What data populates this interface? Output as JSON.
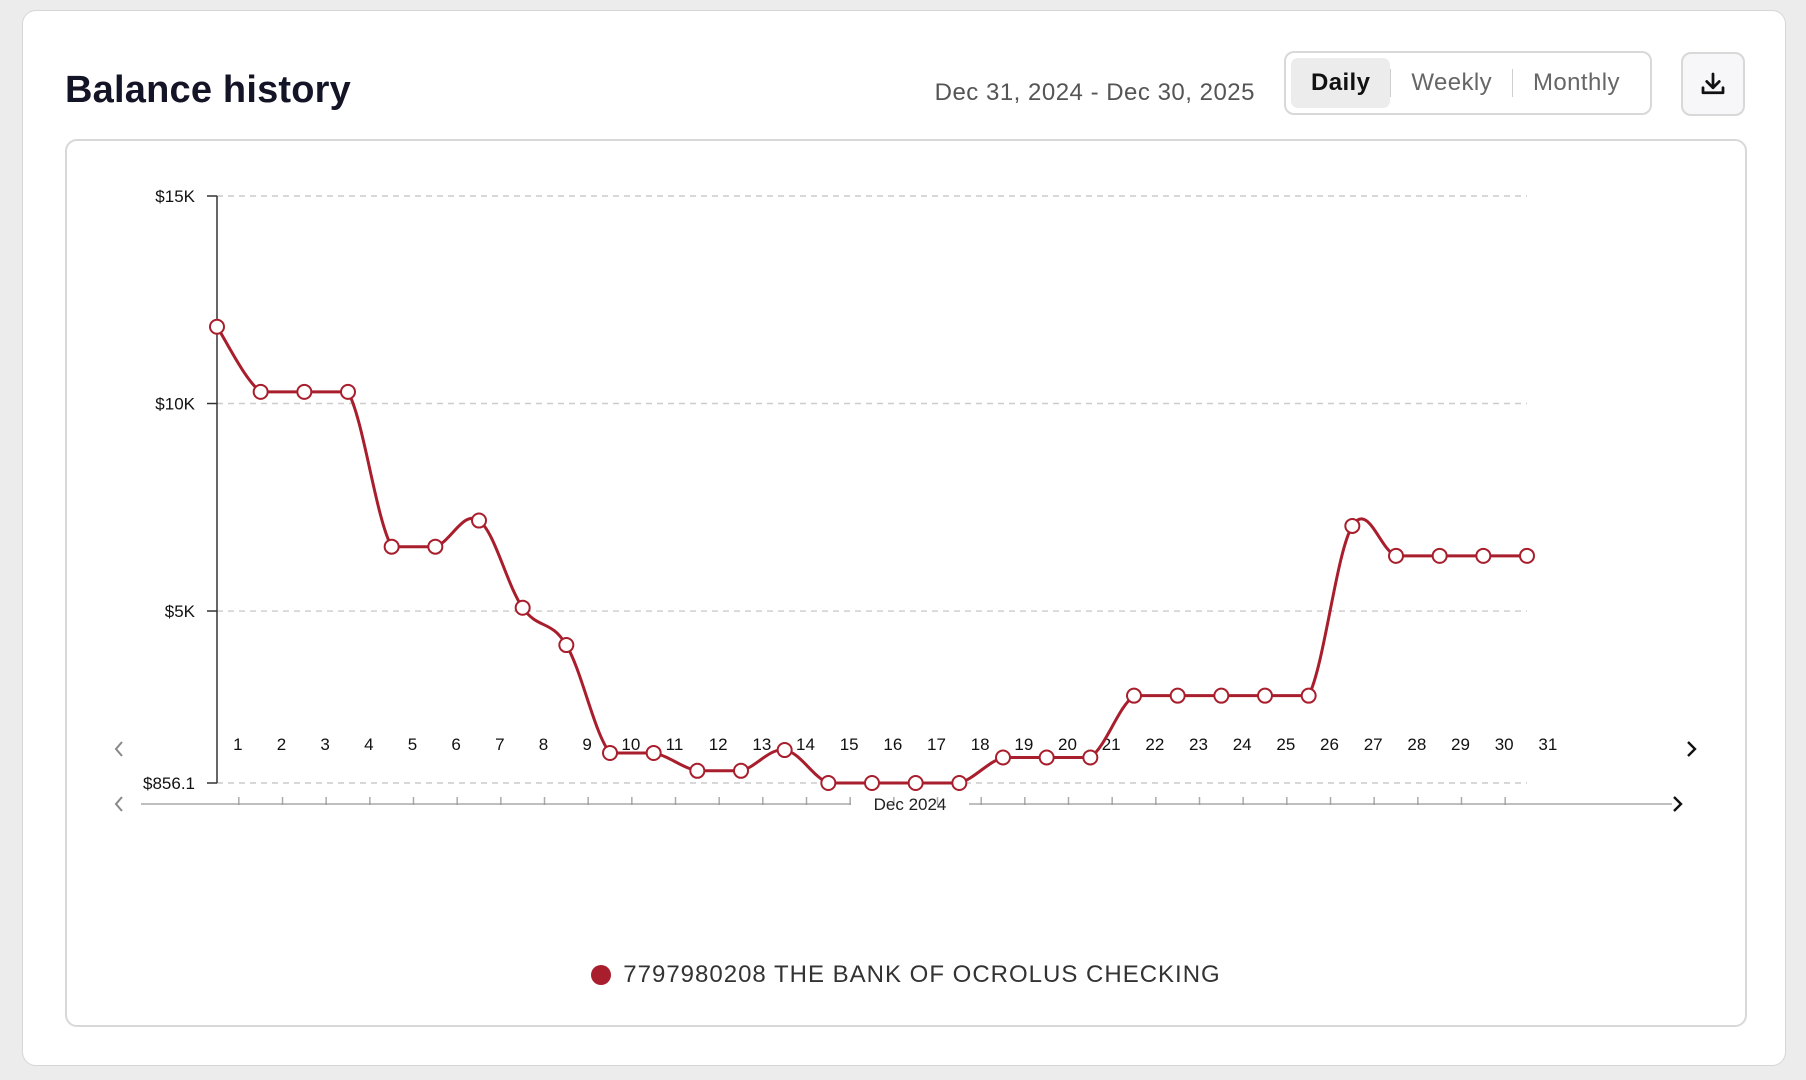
{
  "header": {
    "title": "Balance history",
    "date_range": "Dec 31, 2024 - Dec 30, 2025",
    "views": [
      "Daily",
      "Weekly",
      "Monthly"
    ],
    "active_view": "Daily",
    "download_icon": "download-icon"
  },
  "colors": {
    "series": "#a81e2c",
    "grid": "#cccccc",
    "axis": "#333333"
  },
  "navigator": {
    "label": "Dec 2024"
  },
  "chart_data": {
    "type": "line",
    "title": "",
    "xlabel": "",
    "ylabel": "",
    "y_ticks": [
      {
        "value": 15000,
        "label": "$15K"
      },
      {
        "value": 10000,
        "label": "$10K"
      },
      {
        "value": 5000,
        "label": "$5K"
      },
      {
        "value": 856.1,
        "label": "$856.1"
      }
    ],
    "ylim": [
      856.1,
      15000
    ],
    "grid": true,
    "legend_position": "bottom",
    "categories": [
      "1",
      "2",
      "3",
      "4",
      "5",
      "6",
      "7",
      "8",
      "9",
      "10",
      "11",
      "12",
      "13",
      "14",
      "15",
      "16",
      "17",
      "18",
      "19",
      "20",
      "21",
      "22",
      "23",
      "24",
      "25",
      "26",
      "27",
      "28",
      "29",
      "30",
      "31"
    ],
    "series": [
      {
        "name": "7797980208 THE BANK OF OCROLUS CHECKING",
        "values": [
          11850,
          10280,
          10280,
          10280,
          6550,
          6550,
          7180,
          5080,
          4180,
          1580,
          1580,
          1150,
          1150,
          1650,
          856.1,
          856.1,
          856.1,
          856.1,
          1470,
          1470,
          1470,
          2960,
          2960,
          2960,
          2960,
          2960,
          7050,
          6330,
          6330,
          6330,
          6330
        ]
      }
    ]
  }
}
